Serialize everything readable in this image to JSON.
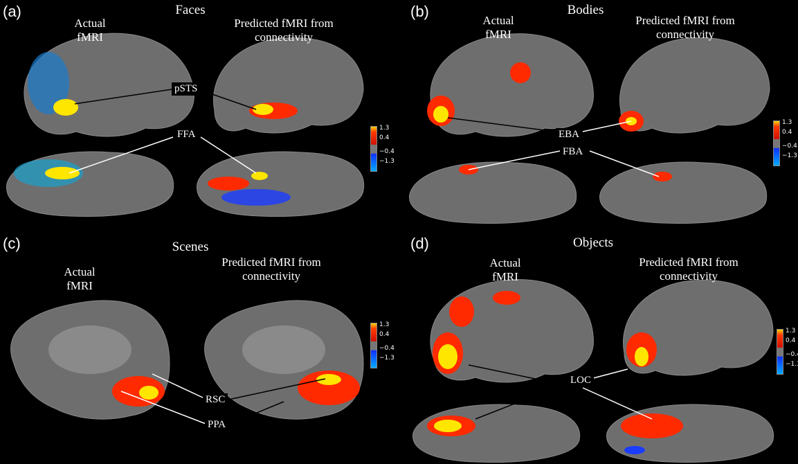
{
  "panels": [
    {
      "letter": "(a)",
      "title": "Faces",
      "col_left": "Actual fMRI",
      "col_right": "Predicted fMRI from connectivity",
      "rois": [
        "pSTS",
        "FFA"
      ]
    },
    {
      "letter": "(b)",
      "title": "Bodies",
      "col_left": "Actual fMRI",
      "col_right": "Predicted fMRI from connectivity",
      "rois": [
        "EBA",
        "FBA"
      ]
    },
    {
      "letter": "(c)",
      "title": "Scenes",
      "col_left": "Actual fMRI",
      "col_right": "Predicted fMRI from connectivity",
      "rois": [
        "RSC",
        "PPA"
      ]
    },
    {
      "letter": "(d)",
      "title": "Objects",
      "col_left": "Actual fMRI",
      "col_right": "Predicted fMRI from connectivity",
      "rois": [
        "LOC"
      ]
    }
  ],
  "colorbar": {
    "ticks": [
      "1.3",
      "0.4",
      "−0.4",
      "−1.3"
    ]
  },
  "colors": {
    "background": "#000000",
    "brain": "#6e6e6e",
    "positive": "#ff2a00",
    "peak": "#ffe600",
    "negative": "#1a3cff",
    "negative_peak": "#00c8ff"
  }
}
